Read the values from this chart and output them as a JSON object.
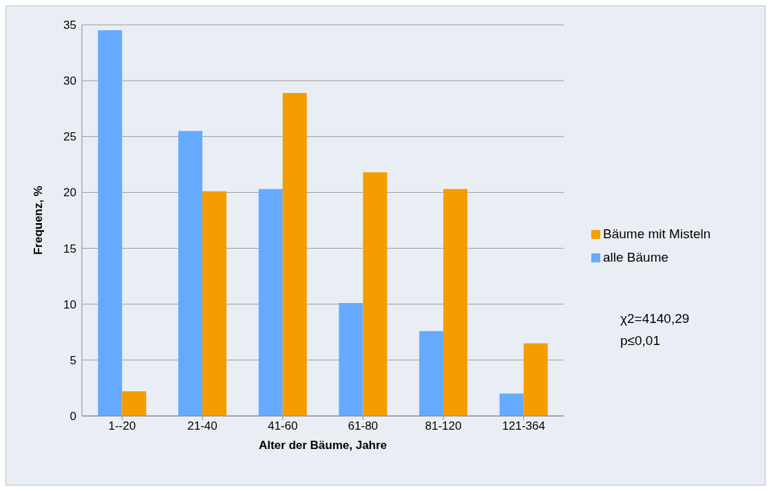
{
  "chart_data": {
    "type": "bar",
    "xlabel": "Alter der Bäume, Jahre",
    "ylabel": "Frequenz, %",
    "categories": [
      "1--20",
      "21-40",
      "41-60",
      "61-80",
      "81-120",
      "121-364"
    ],
    "series": [
      {
        "name": "alle Bäume",
        "color": "#66aaff",
        "values": [
          34.5,
          25.5,
          20.3,
          10.1,
          7.6,
          2.0
        ]
      },
      {
        "name": "Bäume mit Misteln",
        "color": "#f59d00",
        "values": [
          2.2,
          20.1,
          28.9,
          21.8,
          20.3,
          6.5
        ]
      }
    ],
    "ylim": [
      0,
      35
    ],
    "yticks": [
      0,
      5,
      10,
      15,
      20,
      25,
      30,
      35
    ],
    "grid": "y",
    "legend": "right",
    "annotations": [
      "χ2=4140,29\np≤0,01"
    ]
  }
}
